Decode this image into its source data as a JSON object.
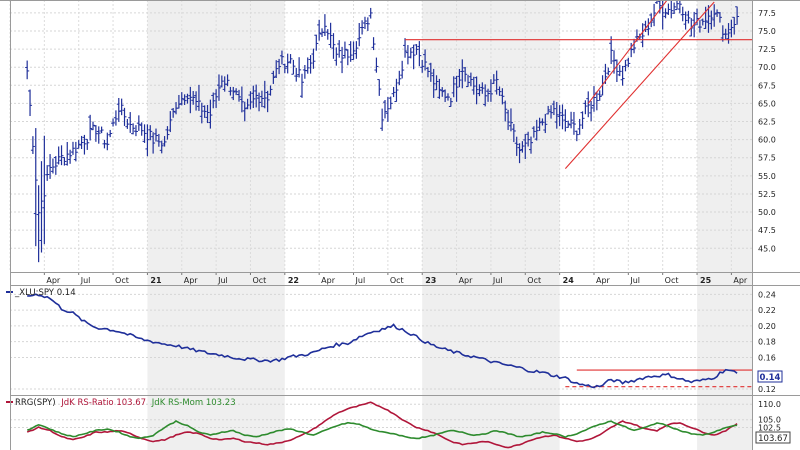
{
  "chart_data": [
    {
      "panel": "price",
      "type": "ohlc",
      "ylim": [
        42,
        79
      ],
      "y_ticks": [
        "45.0",
        "47.5",
        "50.0",
        "52.5",
        "55.0",
        "57.5",
        "60.0",
        "62.5",
        "65.0",
        "67.5",
        "70.0",
        "72.5",
        "75.0",
        "77.5"
      ],
      "x_ticks": [
        "Apr",
        "Jul",
        "Oct",
        "21",
        "Apr",
        "Jul",
        "Oct",
        "22",
        "Apr",
        "Jul",
        "Oct",
        "23",
        "Apr",
        "Jul",
        "Oct",
        "24",
        "Apr",
        "Jul",
        "Oct",
        "25",
        "Apr"
      ],
      "close_series": [
        [
          "2020-02",
          69.5
        ],
        [
          "2020-03",
          50.0
        ],
        [
          "2020-04",
          56.0
        ],
        [
          "2020-05",
          57.5
        ],
        [
          "2020-06",
          58.5
        ],
        [
          "2020-07",
          60.0
        ],
        [
          "2020-08",
          61.5
        ],
        [
          "2020-09",
          59.5
        ],
        [
          "2020-10",
          64.5
        ],
        [
          "2020-11",
          62.0
        ],
        [
          "2020-12",
          61.5
        ],
        [
          "2021-01",
          60.0
        ],
        [
          "2021-02",
          59.5
        ],
        [
          "2021-03",
          65.0
        ],
        [
          "2021-04",
          66.5
        ],
        [
          "2021-05",
          64.5
        ],
        [
          "2021-06",
          63.5
        ],
        [
          "2021-07",
          68.5
        ],
        [
          "2021-08",
          67.0
        ],
        [
          "2021-09",
          63.5
        ],
        [
          "2021-10",
          66.0
        ],
        [
          "2021-11",
          66.0
        ],
        [
          "2021-12",
          70.5
        ],
        [
          "2022-01",
          71.0
        ],
        [
          "2022-02",
          68.0
        ],
        [
          "2022-03",
          71.5
        ],
        [
          "2022-04",
          76.5
        ],
        [
          "2022-05",
          71.5
        ],
        [
          "2022-06",
          72.0
        ],
        [
          "2022-07",
          74.0
        ],
        [
          "2022-08",
          77.5
        ],
        [
          "2022-09",
          63.5
        ],
        [
          "2022-10",
          66.0
        ],
        [
          "2022-11",
          72.0
        ],
        [
          "2022-12",
          72.5
        ],
        [
          "2023-01",
          69.5
        ],
        [
          "2023-02",
          66.5
        ],
        [
          "2023-03",
          66.0
        ],
        [
          "2023-04",
          70.0
        ],
        [
          "2023-05",
          67.5
        ],
        [
          "2023-06",
          66.0
        ],
        [
          "2023-07",
          68.0
        ],
        [
          "2023-08",
          62.5
        ],
        [
          "2023-09",
          58.5
        ],
        [
          "2023-10",
          59.5
        ],
        [
          "2023-11",
          62.5
        ],
        [
          "2023-12",
          64.0
        ],
        [
          "2024-01",
          62.5
        ],
        [
          "2024-02",
          61.5
        ],
        [
          "2024-03",
          64.5
        ],
        [
          "2024-04",
          66.5
        ],
        [
          "2024-05",
          71.5
        ],
        [
          "2024-06",
          69.0
        ],
        [
          "2024-07",
          73.0
        ],
        [
          "2024-08",
          75.0
        ],
        [
          "2024-09",
          78.5
        ],
        [
          "2024-10",
          78.0
        ],
        [
          "2024-11",
          79.0
        ],
        [
          "2024-12",
          75.5
        ],
        [
          "2025-01",
          76.5
        ],
        [
          "2025-02",
          78.0
        ],
        [
          "2025-03",
          74.5
        ],
        [
          "2025-04",
          77.0
        ]
      ],
      "annotations": {
        "horizontal_line_start": "2022-11",
        "horizontal_line_level": 73.8,
        "channel_upper": [
          [
            "2024-03",
            65.0
          ],
          [
            "2024-10",
            79.5
          ]
        ],
        "channel_lower": [
          [
            "2024-01",
            56.0
          ],
          [
            "2025-02",
            79.0
          ]
        ]
      }
    },
    {
      "panel": "ratio",
      "type": "line",
      "legend": "_XLU:SPY 0.14",
      "ylim": [
        0.115,
        0.248
      ],
      "y_ticks": [
        "0.24",
        "0.22",
        "0.20",
        "0.18",
        "0.16",
        "0.12"
      ],
      "last_value_label": "0.14",
      "series": [
        [
          "2020-02",
          0.238
        ],
        [
          "2020-03",
          0.24
        ],
        [
          "2020-04",
          0.235
        ],
        [
          "2020-05",
          0.222
        ],
        [
          "2020-06",
          0.216
        ],
        [
          "2020-07",
          0.205
        ],
        [
          "2020-08",
          0.198
        ],
        [
          "2020-09",
          0.196
        ],
        [
          "2020-10",
          0.193
        ],
        [
          "2020-11",
          0.188
        ],
        [
          "2020-12",
          0.183
        ],
        [
          "2021-01",
          0.18
        ],
        [
          "2021-02",
          0.177
        ],
        [
          "2021-03",
          0.175
        ],
        [
          "2021-04",
          0.171
        ],
        [
          "2021-05",
          0.168
        ],
        [
          "2021-06",
          0.165
        ],
        [
          "2021-07",
          0.163
        ],
        [
          "2021-08",
          0.16
        ],
        [
          "2021-09",
          0.158
        ],
        [
          "2021-10",
          0.157
        ],
        [
          "2021-11",
          0.156
        ],
        [
          "2021-12",
          0.157
        ],
        [
          "2022-01",
          0.161
        ],
        [
          "2022-02",
          0.163
        ],
        [
          "2022-03",
          0.166
        ],
        [
          "2022-04",
          0.172
        ],
        [
          "2022-05",
          0.176
        ],
        [
          "2022-06",
          0.178
        ],
        [
          "2022-07",
          0.186
        ],
        [
          "2022-08",
          0.192
        ],
        [
          "2022-09",
          0.196
        ],
        [
          "2022-10",
          0.2
        ],
        [
          "2022-11",
          0.194
        ],
        [
          "2022-12",
          0.186
        ],
        [
          "2023-01",
          0.178
        ],
        [
          "2023-02",
          0.172
        ],
        [
          "2023-03",
          0.168
        ],
        [
          "2023-04",
          0.164
        ],
        [
          "2023-05",
          0.161
        ],
        [
          "2023-06",
          0.157
        ],
        [
          "2023-07",
          0.153
        ],
        [
          "2023-08",
          0.15
        ],
        [
          "2023-09",
          0.147
        ],
        [
          "2023-10",
          0.143
        ],
        [
          "2023-11",
          0.141
        ],
        [
          "2023-12",
          0.137
        ],
        [
          "2024-01",
          0.134
        ],
        [
          "2024-02",
          0.127
        ],
        [
          "2024-03",
          0.124
        ],
        [
          "2024-04",
          0.123
        ],
        [
          "2024-05",
          0.132
        ],
        [
          "2024-06",
          0.128
        ],
        [
          "2024-07",
          0.131
        ],
        [
          "2024-08",
          0.135
        ],
        [
          "2024-09",
          0.137
        ],
        [
          "2024-10",
          0.138
        ],
        [
          "2024-11",
          0.133
        ],
        [
          "2024-12",
          0.129
        ],
        [
          "2025-01",
          0.131
        ],
        [
          "2025-02",
          0.135
        ],
        [
          "2025-03",
          0.145
        ],
        [
          "2025-04",
          0.14
        ]
      ],
      "annotations": {
        "resistance_start": "2024-02",
        "resistance_level": 0.144,
        "support_start": "2024-01",
        "support_level": 0.123
      }
    },
    {
      "panel": "rrg",
      "type": "line",
      "legend": {
        "label": "RRG(SPY)",
        "ratio": "JdK RS-Ratio 103.67",
        "momentum": "JdK RS-Mom 103.23"
      },
      "y_ticks": [
        "110.0",
        "105.0",
        "102.5"
      ],
      "last_value_label": "103.67",
      "series": [
        {
          "name": "JdK RS-Ratio",
          "color": "#b0163a",
          "values": [
            [
              "2020-02",
              101.0
            ],
            [
              "2020-03",
              102.5
            ],
            [
              "2020-04",
              101.5
            ],
            [
              "2020-05",
              99.5
            ],
            [
              "2020-06",
              98.5
            ],
            [
              "2020-07",
              99.5
            ],
            [
              "2020-08",
              101.0
            ],
            [
              "2020-09",
              101.0
            ],
            [
              "2020-10",
              101.5
            ],
            [
              "2020-11",
              100.5
            ],
            [
              "2020-12",
              99.0
            ],
            [
              "2021-01",
              98.0
            ],
            [
              "2021-02",
              98.5
            ],
            [
              "2021-03",
              100.0
            ],
            [
              "2021-04",
              101.0
            ],
            [
              "2021-05",
              100.5
            ],
            [
              "2021-06",
              99.0
            ],
            [
              "2021-07",
              98.5
            ],
            [
              "2021-08",
              99.0
            ],
            [
              "2021-09",
              98.0
            ],
            [
              "2021-10",
              97.5
            ],
            [
              "2021-11",
              97.0
            ],
            [
              "2021-12",
              97.5
            ],
            [
              "2022-01",
              98.5
            ],
            [
              "2022-02",
              100.0
            ],
            [
              "2022-03",
              102.0
            ],
            [
              "2022-04",
              104.5
            ],
            [
              "2022-05",
              107.0
            ],
            [
              "2022-06",
              108.5
            ],
            [
              "2022-07",
              109.5
            ],
            [
              "2022-08",
              110.5
            ],
            [
              "2022-09",
              109.0
            ],
            [
              "2022-10",
              107.0
            ],
            [
              "2022-11",
              104.5
            ],
            [
              "2022-12",
              102.5
            ],
            [
              "2023-01",
              101.5
            ],
            [
              "2023-02",
              100.0
            ],
            [
              "2023-03",
              98.0
            ],
            [
              "2023-04",
              97.0
            ],
            [
              "2023-05",
              97.5
            ],
            [
              "2023-06",
              98.0
            ],
            [
              "2023-07",
              97.0
            ],
            [
              "2023-08",
              96.0
            ],
            [
              "2023-09",
              97.0
            ],
            [
              "2023-10",
              98.5
            ],
            [
              "2023-11",
              99.5
            ],
            [
              "2023-12",
              100.0
            ],
            [
              "2024-01",
              99.0
            ],
            [
              "2024-02",
              98.0
            ],
            [
              "2024-03",
              98.5
            ],
            [
              "2024-04",
              100.0
            ],
            [
              "2024-05",
              102.5
            ],
            [
              "2024-06",
              104.5
            ],
            [
              "2024-07",
              103.5
            ],
            [
              "2024-08",
              102.0
            ],
            [
              "2024-09",
              101.5
            ],
            [
              "2024-10",
              103.5
            ],
            [
              "2024-11",
              104.0
            ],
            [
              "2024-12",
              102.5
            ],
            [
              "2025-01",
              101.0
            ],
            [
              "2025-02",
              100.0
            ],
            [
              "2025-03",
              101.5
            ],
            [
              "2025-04",
              103.7
            ]
          ]
        },
        {
          "name": "JdK RS-Mom",
          "color": "#2e8b2e",
          "values": [
            [
              "2020-02",
              101.5
            ],
            [
              "2020-03",
              103.5
            ],
            [
              "2020-04",
              102.0
            ],
            [
              "2020-05",
              100.5
            ],
            [
              "2020-06",
              99.5
            ],
            [
              "2020-07",
              100.5
            ],
            [
              "2020-08",
              101.5
            ],
            [
              "2020-09",
              102.0
            ],
            [
              "2020-10",
              101.0
            ],
            [
              "2020-11",
              99.5
            ],
            [
              "2020-12",
              99.0
            ],
            [
              "2021-01",
              100.0
            ],
            [
              "2021-02",
              102.5
            ],
            [
              "2021-03",
              104.5
            ],
            [
              "2021-04",
              103.0
            ],
            [
              "2021-05",
              101.0
            ],
            [
              "2021-06",
              100.0
            ],
            [
              "2021-07",
              101.0
            ],
            [
              "2021-08",
              101.5
            ],
            [
              "2021-09",
              100.0
            ],
            [
              "2021-10",
              99.5
            ],
            [
              "2021-11",
              100.5
            ],
            [
              "2021-12",
              101.5
            ],
            [
              "2022-01",
              102.0
            ],
            [
              "2022-02",
              101.0
            ],
            [
              "2022-03",
              100.0
            ],
            [
              "2022-04",
              101.5
            ],
            [
              "2022-05",
              103.0
            ],
            [
              "2022-06",
              104.0
            ],
            [
              "2022-07",
              103.5
            ],
            [
              "2022-08",
              102.0
            ],
            [
              "2022-09",
              101.0
            ],
            [
              "2022-10",
              100.5
            ],
            [
              "2022-11",
              99.5
            ],
            [
              "2022-12",
              99.0
            ],
            [
              "2023-01",
              99.5
            ],
            [
              "2023-02",
              100.5
            ],
            [
              "2023-03",
              101.5
            ],
            [
              "2023-04",
              101.0
            ],
            [
              "2023-05",
              100.0
            ],
            [
              "2023-06",
              100.5
            ],
            [
              "2023-07",
              101.5
            ],
            [
              "2023-08",
              100.5
            ],
            [
              "2023-09",
              99.5
            ],
            [
              "2023-10",
              100.0
            ],
            [
              "2023-11",
              101.0
            ],
            [
              "2023-12",
              100.5
            ],
            [
              "2024-01",
              99.5
            ],
            [
              "2024-02",
              100.5
            ],
            [
              "2024-03",
              102.0
            ],
            [
              "2024-04",
              103.5
            ],
            [
              "2024-05",
              104.5
            ],
            [
              "2024-06",
              103.0
            ],
            [
              "2024-07",
              101.5
            ],
            [
              "2024-08",
              102.5
            ],
            [
              "2024-09",
              104.0
            ],
            [
              "2024-10",
              103.0
            ],
            [
              "2024-11",
              101.5
            ],
            [
              "2024-12",
              100.5
            ],
            [
              "2025-01",
              100.0
            ],
            [
              "2025-02",
              101.0
            ],
            [
              "2025-03",
              102.5
            ],
            [
              "2025-04",
              103.2
            ]
          ]
        }
      ]
    }
  ]
}
